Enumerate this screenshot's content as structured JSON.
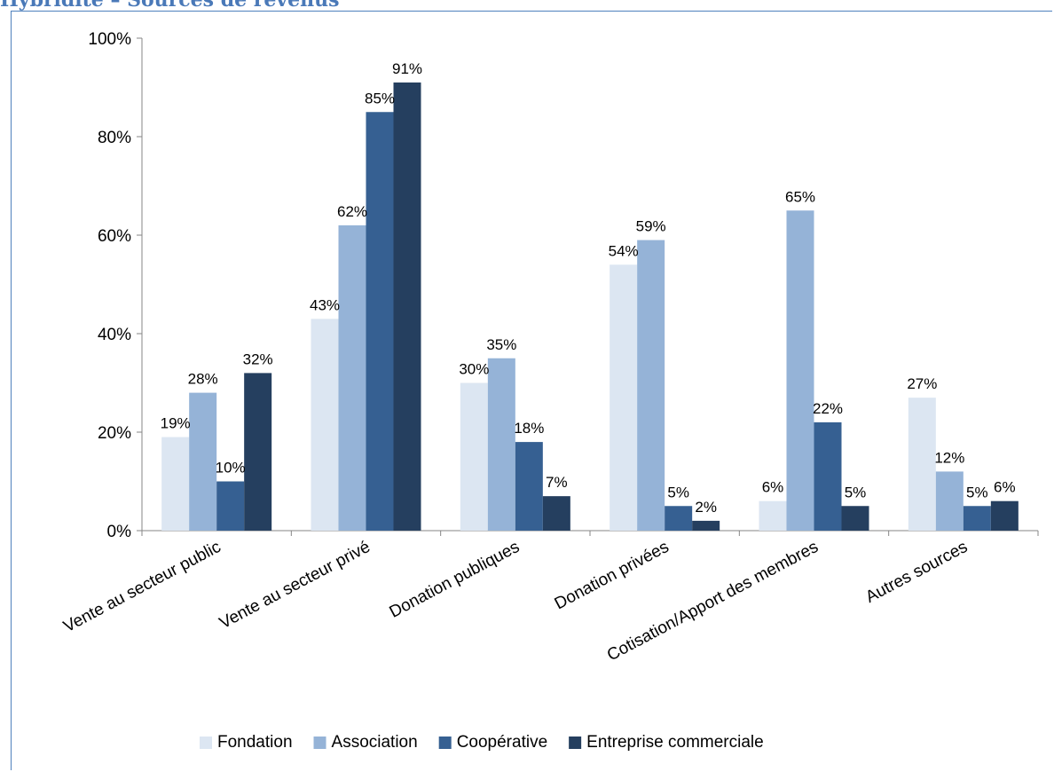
{
  "page": {
    "heading": "Hybridité – Sources de revenus"
  },
  "chart_data": {
    "type": "bar",
    "categories": [
      "Vente au secteur public",
      "Vente au secteur privé",
      "Donation publiques",
      "Donation privées",
      "Cotisation/Apport des membres",
      "Autres sources"
    ],
    "series": [
      {
        "name": "Fondation",
        "color": "#dce6f2",
        "values": [
          19,
          43,
          30,
          54,
          6,
          27
        ]
      },
      {
        "name": "Association",
        "color": "#95b3d7",
        "values": [
          28,
          62,
          35,
          59,
          65,
          12
        ]
      },
      {
        "name": "Coopérative",
        "color": "#366092",
        "values": [
          10,
          85,
          18,
          5,
          22,
          5
        ]
      },
      {
        "name": "Entreprise commerciale",
        "color": "#253f5f",
        "values": [
          32,
          91,
          7,
          2,
          5,
          6
        ]
      }
    ],
    "ylim": [
      0,
      100
    ],
    "yticks": [
      0,
      20,
      40,
      60,
      80,
      100
    ],
    "value_suffix": "%",
    "grid": false,
    "legend_position": "bottom"
  }
}
